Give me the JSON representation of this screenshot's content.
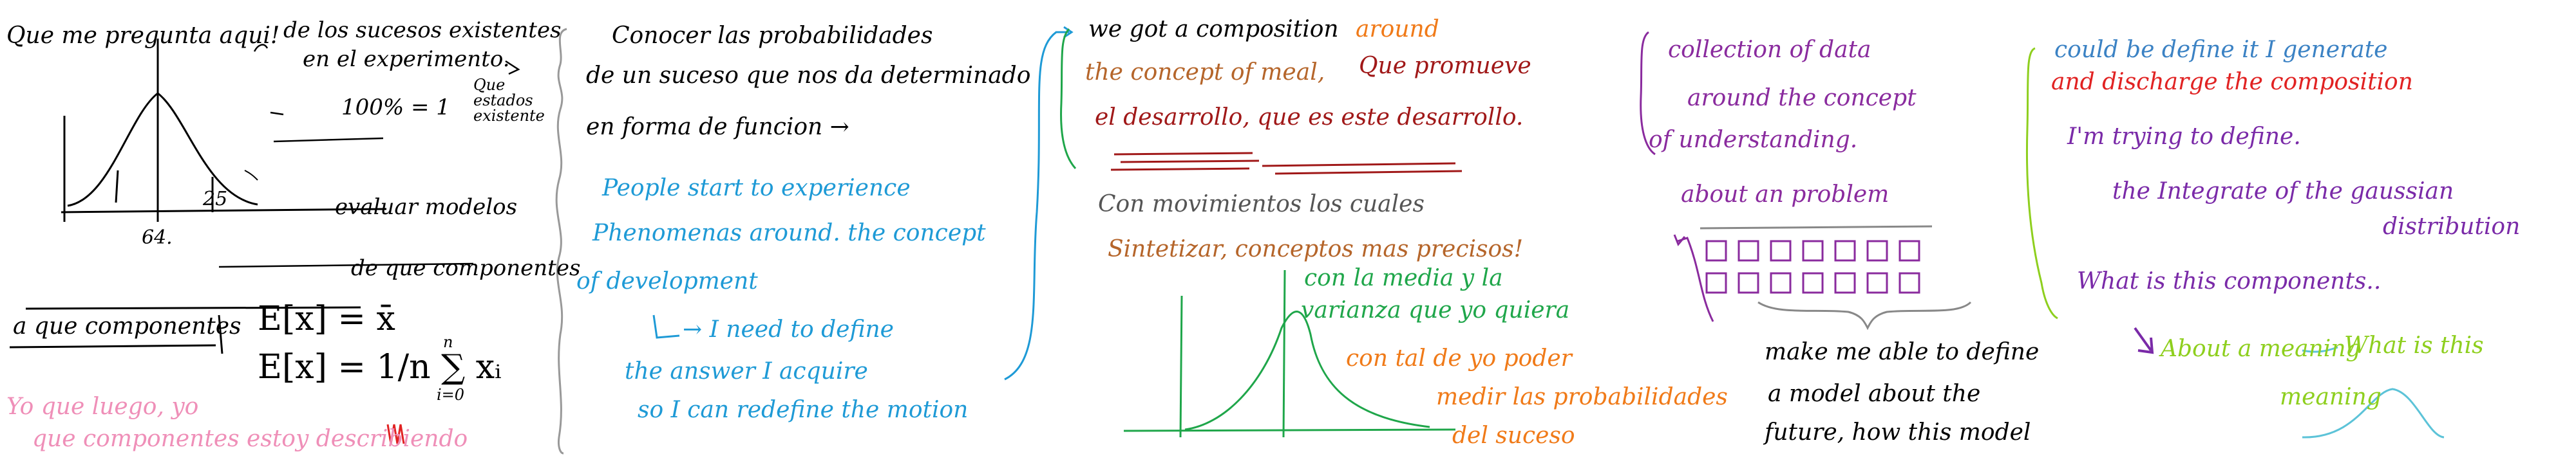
{
  "sections": {
    "s1": {
      "l1": "Que me pregunta aqui!",
      "l2": "de los sucesos existentes",
      "l3": "en el experimento.",
      "l4": "100% = 1",
      "l5": "Que estados existente",
      "l6": "evaluar modelos",
      "tick64": "64.",
      "tick25": "25",
      "l7": "de que componentes",
      "l8": "a que componentes",
      "eq1": "E[x] = x̄",
      "eq2": "E[x] = 1/n ∑ xᵢ",
      "sumtop": "n",
      "sumbot": "i=0",
      "l9": "Yo que luego, yo",
      "l10": "que componentes estoy describiendo"
    },
    "s2": {
      "l1": "Conocer las probabilidades",
      "l2": "de un suceso que nos da determinado",
      "l3": "en forma de funcion →",
      "l4": "People start to experience",
      "l5": "Phenomenas around. the concept",
      "l6": "of development",
      "l7": "→ I need to define",
      "l8": "the answer I acquire",
      "l9": "so I can redefine the motion"
    },
    "s3": {
      "l1": "we got a composition",
      "l1b": "around",
      "l2": "the concept of meal,",
      "l2b": "Que promueve",
      "l3": "el desarrollo, que es este desarrollo.",
      "l4": "Con movimientos los cuales",
      "l5": "Sintetizar, conceptos mas precisos!",
      "l6": "con la media y la",
      "l7": "varianza que yo quiera",
      "l8": "con tal de yo poder",
      "l9": "medir las probabilidades",
      "l10": "del suceso"
    },
    "s4": {
      "l1": "collection of data",
      "l2": "around the concept",
      "l3": "of understanding.",
      "l4": "about an problem",
      "l5": "make me able to define",
      "l6": "a model about the",
      "l7": "future, how this model"
    },
    "s5": {
      "l1": "could be define it I generate",
      "l2": "and discharge the composition",
      "l3": "I'm trying to define.",
      "l4": "the Integrate of the gaussian",
      "l5": "distribution",
      "l6": "What is this components..",
      "l7": "About a meaning",
      "l8": "What is this",
      "l9": "meaning"
    }
  },
  "colors": {
    "ink": "#000000",
    "blue": "#1e9ad6",
    "darkred": "#a01818",
    "brown": "#b5652a",
    "green": "#1fa64a",
    "orange": "#f07a18",
    "purple": "#8a2b9e",
    "pink": "#ef8fb8",
    "lime": "#8ecf1e",
    "steelblue": "#3b82c4",
    "red": "#e12222",
    "gray": "#999999"
  }
}
